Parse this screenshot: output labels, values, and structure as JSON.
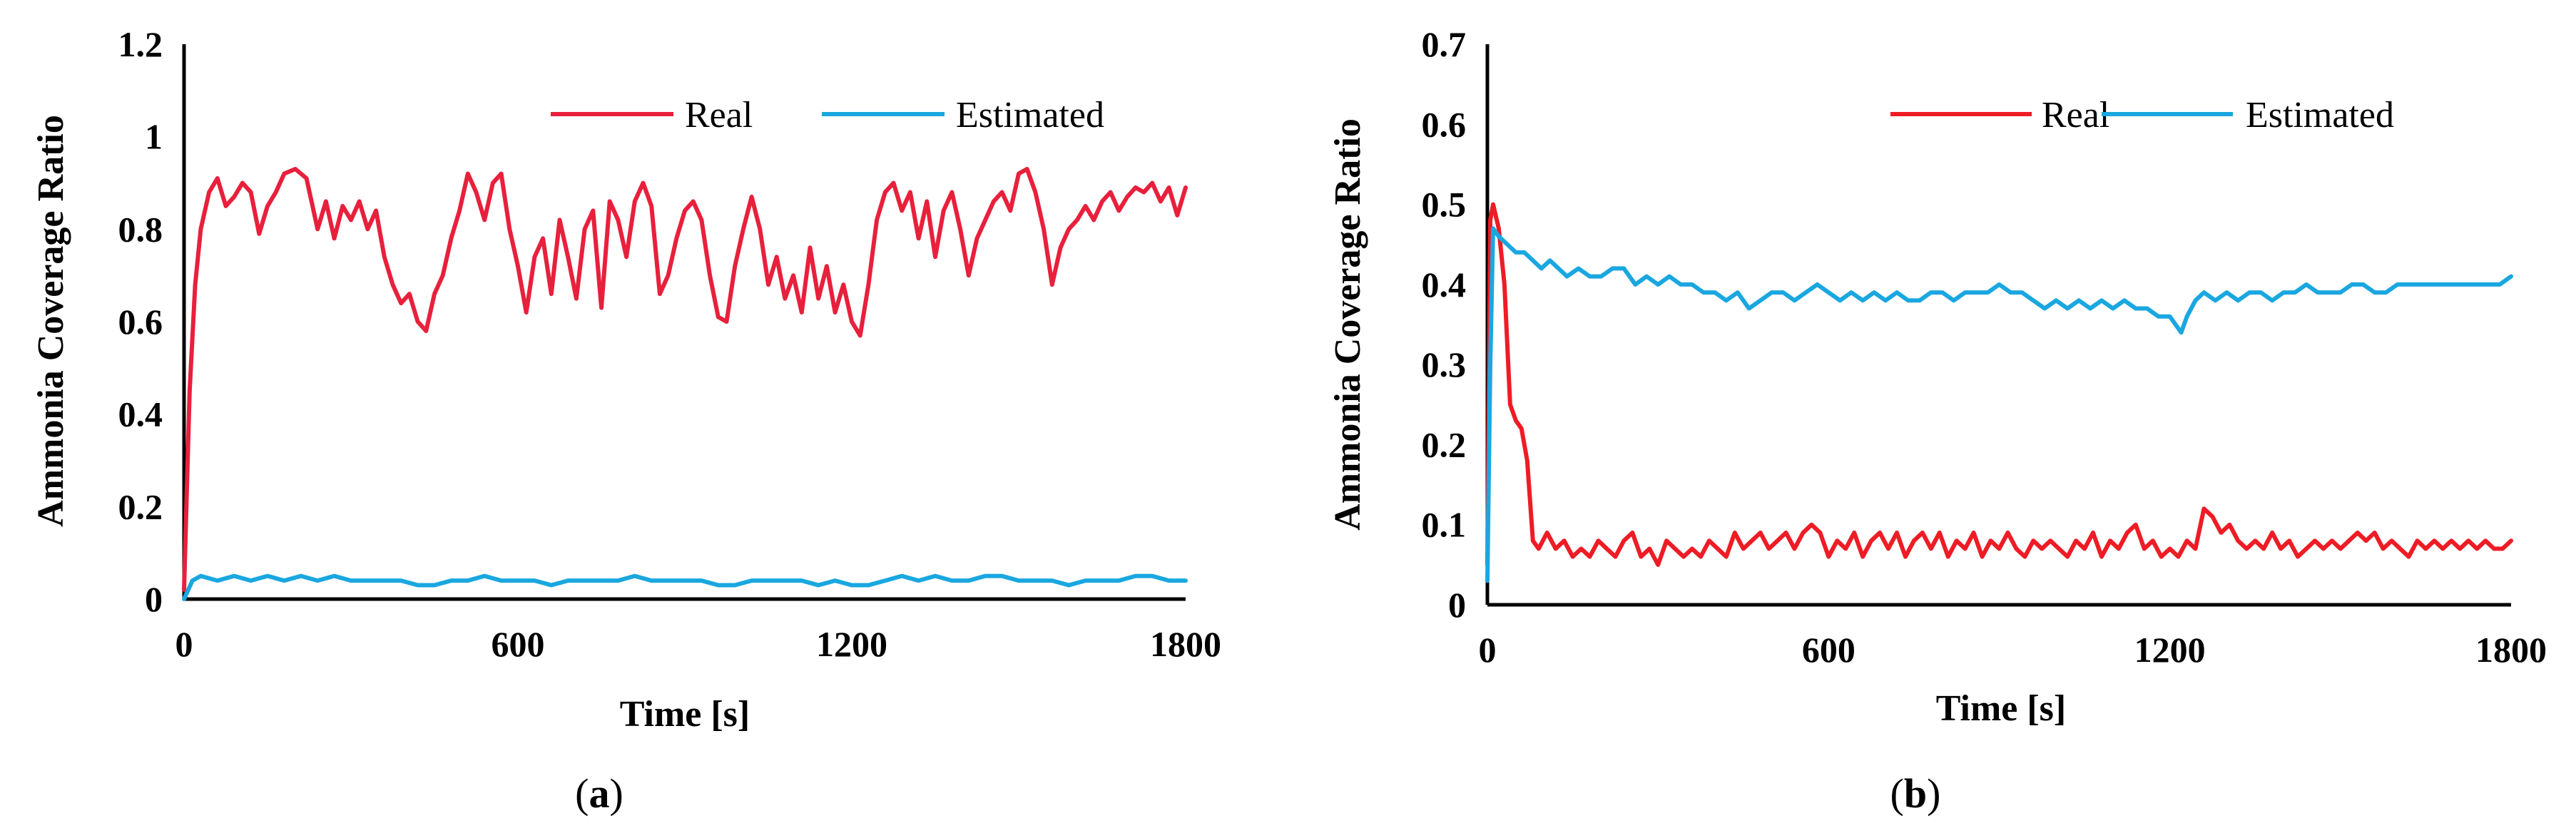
{
  "chart_data": [
    {
      "panel": "a",
      "type": "line",
      "caption_prefix": "(",
      "caption_letter": "a",
      "caption_suffix": ")",
      "xlabel": "Time [s]",
      "ylabel": "Ammonia Coverage Ratio",
      "xlim": [
        0,
        1800
      ],
      "ylim": [
        0,
        1.2
      ],
      "xticks": [
        "0",
        "600",
        "1200",
        "1800"
      ],
      "yticks": [
        "0",
        "0.2",
        "0.4",
        "0.6",
        "0.8",
        "1",
        "1.2"
      ],
      "legend_position": "top-right",
      "series": [
        {
          "name": "Real",
          "color": "#e8203c",
          "x": [
            0,
            10,
            20,
            30,
            45,
            60,
            75,
            90,
            105,
            120,
            135,
            150,
            165,
            180,
            200,
            220,
            240,
            255,
            270,
            285,
            300,
            315,
            330,
            345,
            360,
            375,
            390,
            405,
            420,
            435,
            450,
            465,
            480,
            495,
            510,
            525,
            540,
            555,
            570,
            585,
            600,
            615,
            630,
            645,
            660,
            675,
            690,
            705,
            720,
            735,
            750,
            765,
            780,
            795,
            810,
            825,
            840,
            855,
            870,
            885,
            900,
            915,
            930,
            945,
            960,
            975,
            990,
            1005,
            1020,
            1035,
            1050,
            1065,
            1080,
            1095,
            1110,
            1125,
            1140,
            1155,
            1170,
            1185,
            1200,
            1215,
            1230,
            1245,
            1260,
            1275,
            1290,
            1305,
            1320,
            1335,
            1350,
            1365,
            1380,
            1395,
            1410,
            1425,
            1440,
            1455,
            1470,
            1485,
            1500,
            1515,
            1530,
            1545,
            1560,
            1575,
            1590,
            1605,
            1620,
            1635,
            1650,
            1665,
            1680,
            1695,
            1710,
            1725,
            1740,
            1755,
            1770,
            1785,
            1800
          ],
          "values": [
            0.02,
            0.45,
            0.68,
            0.8,
            0.88,
            0.91,
            0.85,
            0.87,
            0.9,
            0.88,
            0.79,
            0.85,
            0.88,
            0.92,
            0.93,
            0.91,
            0.8,
            0.86,
            0.78,
            0.85,
            0.82,
            0.86,
            0.8,
            0.84,
            0.74,
            0.68,
            0.64,
            0.66,
            0.6,
            0.58,
            0.66,
            0.7,
            0.78,
            0.84,
            0.92,
            0.88,
            0.82,
            0.9,
            0.92,
            0.8,
            0.72,
            0.62,
            0.74,
            0.78,
            0.66,
            0.82,
            0.74,
            0.65,
            0.8,
            0.84,
            0.63,
            0.86,
            0.82,
            0.74,
            0.86,
            0.9,
            0.85,
            0.66,
            0.7,
            0.78,
            0.84,
            0.86,
            0.82,
            0.7,
            0.61,
            0.6,
            0.72,
            0.8,
            0.87,
            0.8,
            0.68,
            0.74,
            0.65,
            0.7,
            0.62,
            0.76,
            0.65,
            0.72,
            0.62,
            0.68,
            0.6,
            0.57,
            0.68,
            0.82,
            0.88,
            0.9,
            0.84,
            0.88,
            0.78,
            0.86,
            0.74,
            0.84,
            0.88,
            0.8,
            0.7,
            0.78,
            0.82,
            0.86,
            0.88,
            0.84,
            0.92,
            0.93,
            0.88,
            0.8,
            0.68,
            0.76,
            0.8,
            0.82,
            0.85,
            0.82,
            0.86,
            0.88,
            0.84,
            0.87,
            0.89,
            0.88,
            0.9,
            0.86,
            0.89,
            0.83,
            0.89
          ]
        },
        {
          "name": "Estimated",
          "color": "#1aa7e0",
          "x": [
            0,
            15,
            30,
            60,
            90,
            120,
            150,
            180,
            210,
            240,
            270,
            300,
            330,
            360,
            390,
            420,
            450,
            480,
            510,
            540,
            570,
            600,
            630,
            660,
            690,
            720,
            750,
            780,
            810,
            840,
            870,
            900,
            930,
            960,
            990,
            1020,
            1050,
            1080,
            1110,
            1140,
            1170,
            1200,
            1230,
            1260,
            1290,
            1320,
            1350,
            1380,
            1410,
            1440,
            1470,
            1500,
            1530,
            1560,
            1590,
            1620,
            1650,
            1680,
            1710,
            1740,
            1770,
            1800
          ],
          "values": [
            0.0,
            0.04,
            0.05,
            0.04,
            0.05,
            0.04,
            0.05,
            0.04,
            0.05,
            0.04,
            0.05,
            0.04,
            0.04,
            0.04,
            0.04,
            0.03,
            0.03,
            0.04,
            0.04,
            0.05,
            0.04,
            0.04,
            0.04,
            0.03,
            0.04,
            0.04,
            0.04,
            0.04,
            0.05,
            0.04,
            0.04,
            0.04,
            0.04,
            0.03,
            0.03,
            0.04,
            0.04,
            0.04,
            0.04,
            0.03,
            0.04,
            0.03,
            0.03,
            0.04,
            0.05,
            0.04,
            0.05,
            0.04,
            0.04,
            0.05,
            0.05,
            0.04,
            0.04,
            0.04,
            0.03,
            0.04,
            0.04,
            0.04,
            0.05,
            0.05,
            0.04,
            0.04
          ]
        }
      ]
    },
    {
      "panel": "b",
      "type": "line",
      "caption_prefix": "(",
      "caption_letter": "b",
      "caption_suffix": ")",
      "xlabel": "Time [s]",
      "ylabel": "Ammonia Coverage Ratio",
      "xlim": [
        0,
        1800
      ],
      "ylim": [
        0,
        0.7
      ],
      "xticks": [
        "0",
        "600",
        "1200",
        "1800"
      ],
      "yticks": [
        "0",
        "0.1",
        "0.2",
        "0.3",
        "0.4",
        "0.5",
        "0.6",
        "0.7"
      ],
      "legend_position": "top-right",
      "series": [
        {
          "name": "Real",
          "color": "#ee1c25",
          "x": [
            0,
            5,
            10,
            20,
            30,
            40,
            50,
            60,
            70,
            80,
            90,
            105,
            120,
            135,
            150,
            165,
            180,
            195,
            210,
            225,
            240,
            255,
            270,
            285,
            300,
            315,
            330,
            345,
            360,
            375,
            390,
            405,
            420,
            435,
            450,
            465,
            480,
            495,
            510,
            525,
            540,
            555,
            570,
            585,
            600,
            615,
            630,
            645,
            660,
            675,
            690,
            705,
            720,
            735,
            750,
            765,
            780,
            795,
            810,
            825,
            840,
            855,
            870,
            885,
            900,
            915,
            930,
            945,
            960,
            975,
            990,
            1005,
            1020,
            1035,
            1050,
            1065,
            1080,
            1095,
            1110,
            1125,
            1140,
            1155,
            1170,
            1185,
            1200,
            1215,
            1230,
            1245,
            1260,
            1275,
            1290,
            1305,
            1320,
            1335,
            1350,
            1365,
            1380,
            1395,
            1410,
            1425,
            1440,
            1455,
            1470,
            1485,
            1500,
            1515,
            1530,
            1545,
            1560,
            1575,
            1590,
            1605,
            1620,
            1635,
            1650,
            1665,
            1680,
            1695,
            1710,
            1725,
            1740,
            1755,
            1770,
            1785,
            1800
          ],
          "values": [
            0.05,
            0.48,
            0.5,
            0.47,
            0.4,
            0.25,
            0.23,
            0.22,
            0.18,
            0.08,
            0.07,
            0.09,
            0.07,
            0.08,
            0.06,
            0.07,
            0.06,
            0.08,
            0.07,
            0.06,
            0.08,
            0.09,
            0.06,
            0.07,
            0.05,
            0.08,
            0.07,
            0.06,
            0.07,
            0.06,
            0.08,
            0.07,
            0.06,
            0.09,
            0.07,
            0.08,
            0.09,
            0.07,
            0.08,
            0.09,
            0.07,
            0.09,
            0.1,
            0.09,
            0.06,
            0.08,
            0.07,
            0.09,
            0.06,
            0.08,
            0.09,
            0.07,
            0.09,
            0.06,
            0.08,
            0.09,
            0.07,
            0.09,
            0.06,
            0.08,
            0.07,
            0.09,
            0.06,
            0.08,
            0.07,
            0.09,
            0.07,
            0.06,
            0.08,
            0.07,
            0.08,
            0.07,
            0.06,
            0.08,
            0.07,
            0.09,
            0.06,
            0.08,
            0.07,
            0.09,
            0.1,
            0.07,
            0.08,
            0.06,
            0.07,
            0.06,
            0.08,
            0.07,
            0.12,
            0.11,
            0.09,
            0.1,
            0.08,
            0.07,
            0.08,
            0.07,
            0.09,
            0.07,
            0.08,
            0.06,
            0.07,
            0.08,
            0.07,
            0.08,
            0.07,
            0.08,
            0.09,
            0.08,
            0.09,
            0.07,
            0.08,
            0.07,
            0.06,
            0.08,
            0.07,
            0.08,
            0.07,
            0.08,
            0.07,
            0.08,
            0.07,
            0.08,
            0.07,
            0.07,
            0.08
          ]
        },
        {
          "name": "Estimated",
          "color": "#1aa7e0",
          "x": [
            0,
            5,
            10,
            20,
            35,
            50,
            65,
            80,
            95,
            110,
            125,
            140,
            160,
            180,
            200,
            220,
            240,
            260,
            280,
            300,
            320,
            340,
            360,
            380,
            400,
            420,
            440,
            460,
            480,
            500,
            520,
            540,
            560,
            580,
            600,
            620,
            640,
            660,
            680,
            700,
            720,
            740,
            760,
            780,
            800,
            820,
            840,
            860,
            880,
            900,
            920,
            940,
            960,
            980,
            1000,
            1020,
            1040,
            1060,
            1080,
            1100,
            1120,
            1140,
            1160,
            1180,
            1200,
            1210,
            1220,
            1230,
            1245,
            1260,
            1280,
            1300,
            1320,
            1340,
            1360,
            1380,
            1400,
            1420,
            1440,
            1460,
            1480,
            1500,
            1520,
            1540,
            1560,
            1580,
            1600,
            1620,
            1640,
            1660,
            1680,
            1700,
            1720,
            1740,
            1760,
            1780,
            1800
          ],
          "values": [
            0.03,
            0.3,
            0.47,
            0.46,
            0.45,
            0.44,
            0.44,
            0.43,
            0.42,
            0.43,
            0.42,
            0.41,
            0.42,
            0.41,
            0.41,
            0.42,
            0.42,
            0.4,
            0.41,
            0.4,
            0.41,
            0.4,
            0.4,
            0.39,
            0.39,
            0.38,
            0.39,
            0.37,
            0.38,
            0.39,
            0.39,
            0.38,
            0.39,
            0.4,
            0.39,
            0.38,
            0.39,
            0.38,
            0.39,
            0.38,
            0.39,
            0.38,
            0.38,
            0.39,
            0.39,
            0.38,
            0.39,
            0.39,
            0.39,
            0.4,
            0.39,
            0.39,
            0.38,
            0.37,
            0.38,
            0.37,
            0.38,
            0.37,
            0.38,
            0.37,
            0.38,
            0.37,
            0.37,
            0.36,
            0.36,
            0.35,
            0.34,
            0.36,
            0.38,
            0.39,
            0.38,
            0.39,
            0.38,
            0.39,
            0.39,
            0.38,
            0.39,
            0.39,
            0.4,
            0.39,
            0.39,
            0.39,
            0.4,
            0.4,
            0.39,
            0.39,
            0.4,
            0.4,
            0.4,
            0.4,
            0.4,
            0.4,
            0.4,
            0.4,
            0.4,
            0.4,
            0.41
          ]
        }
      ]
    }
  ]
}
